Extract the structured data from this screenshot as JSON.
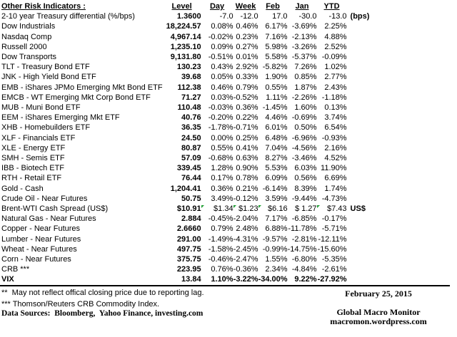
{
  "colors": {
    "flag_green": "#1f9e33",
    "rule_black": "#000000"
  },
  "table": {
    "title": "Other Risk Indicators :",
    "headers": [
      "Level",
      "Day",
      "Week",
      "Feb",
      "Jan",
      "YTD"
    ],
    "rows": [
      {
        "label": "2-10 year Treasury differential (%/bps)",
        "values": [
          "1.3600",
          "-7.0",
          "-12.0",
          "17.0",
          "-30.0",
          "-13.0"
        ],
        "note": "(bps)",
        "note_bold": true
      },
      {
        "label": "Dow Industrials",
        "values": [
          "18,224.57",
          "0.08%",
          "0.46%",
          "6.17%",
          "-3.69%",
          "2.25%"
        ]
      },
      {
        "label": "Nasdaq Comp",
        "values": [
          "4,967.14",
          "-0.02%",
          "0.23%",
          "7.16%",
          "-2.13%",
          "4.88%"
        ]
      },
      {
        "label": "Russell 2000",
        "values": [
          "1,235.10",
          "0.09%",
          "0.27%",
          "5.98%",
          "-3.26%",
          "2.52%"
        ]
      },
      {
        "label": "Dow Transports",
        "values": [
          "9,131.80",
          "-0.51%",
          "0.01%",
          "5.58%",
          "-5.37%",
          "-0.09%"
        ]
      },
      {
        "label": "TLT - Treasury Bond ETF",
        "values": [
          "130.23",
          "0.43%",
          "2.92%",
          "-5.82%",
          "7.26%",
          "1.02%"
        ]
      },
      {
        "label": "JNK - High Yield Bond ETF",
        "values": [
          "39.68",
          "0.05%",
          "0.33%",
          "1.90%",
          "0.85%",
          "2.77%"
        ]
      },
      {
        "label": "EMB - iShares JPMo Emerging Mkt Bond ETF",
        "values": [
          "112.38",
          "0.46%",
          "0.79%",
          "0.55%",
          "1.87%",
          "2.43%"
        ]
      },
      {
        "label": "EMCB - WT Emerging Mkt Corp Bond ETF",
        "values": [
          "71.27",
          "0.03%",
          "-0.52%",
          "1.11%",
          "-2.26%",
          "-1.18%"
        ]
      },
      {
        "label": "MUB - Muni Bond ETF",
        "values": [
          "110.48",
          "-0.03%",
          "0.36%",
          "-1.45%",
          "1.60%",
          "0.13%"
        ]
      },
      {
        "label": "EEM - iShares Emerging Mkt ETF",
        "values": [
          "40.76",
          "-0.20%",
          "0.22%",
          "4.46%",
          "-0.69%",
          "3.74%"
        ]
      },
      {
        "label": "XHB - Homebuilders ETF",
        "values": [
          "36.35",
          "-1.78%",
          "-0.71%",
          "6.01%",
          "0.50%",
          "6.54%"
        ]
      },
      {
        "label": "XLF - Financials ETF",
        "values": [
          "24.50",
          "0.00%",
          "0.25%",
          "6.48%",
          "-6.96%",
          "-0.93%"
        ]
      },
      {
        "label": "XLE - Energy ETF",
        "values": [
          "80.87",
          "0.55%",
          "0.41%",
          "7.04%",
          "-4.56%",
          "2.16%"
        ]
      },
      {
        "label": "SMH - Semis ETF",
        "values": [
          "57.09",
          "-0.68%",
          "0.63%",
          "8.27%",
          "-3.46%",
          "4.52%"
        ]
      },
      {
        "label": "IBB - Biotech ETF",
        "values": [
          "339.45",
          "1.28%",
          "0.90%",
          "5.53%",
          "6.03%",
          "11.90%"
        ]
      },
      {
        "label": "RTH - Retail ETF",
        "values": [
          "76.44",
          "0.17%",
          "0.78%",
          "6.09%",
          "0.56%",
          "6.69%"
        ]
      },
      {
        "label": "Gold - Cash",
        "values": [
          "1,204.41",
          "0.36%",
          "0.21%",
          "-6.14%",
          "8.39%",
          "1.74%"
        ]
      },
      {
        "label": "Crude Oil - Near Futures",
        "values": [
          "50.75",
          "3.49%",
          "-0.12%",
          "3.59%",
          "-9.44%",
          "-4.73%"
        ]
      },
      {
        "label": "Brent-WTI Cash Spread (US$)",
        "values": [
          "$10.91",
          "$1.34",
          "$1.23",
          "$6.16",
          "$ 1.27",
          "$7.43"
        ],
        "note": "US$",
        "note_bold": true,
        "flags": [
          1,
          2,
          3,
          5
        ]
      },
      {
        "label": "Natural Gas - Near Futures",
        "values": [
          "2.884",
          "-0.45%",
          "-2.04%",
          "7.17%",
          "-6.85%",
          "-0.17%"
        ]
      },
      {
        "label": "Copper - Near Futures",
        "values": [
          "2.6660",
          "0.79%",
          "2.48%",
          "6.88%",
          "-11.78%",
          "-5.71%"
        ]
      },
      {
        "label": "Lumber - Near Futures",
        "values": [
          "291.00",
          "-1.49%",
          "-4.31%",
          "-9.57%",
          "-2.81%",
          "-12.11%"
        ]
      },
      {
        "label": "Wheat - Near Futures",
        "values": [
          "497.75",
          "-1.58%",
          "-2.45%",
          "-0.99%",
          "-14.75%",
          "-15.60%"
        ]
      },
      {
        "label": "Corn - Near Futures",
        "values": [
          "375.75",
          "-0.46%",
          "-2.47%",
          "1.55%",
          "-6.80%",
          "-5.35%"
        ]
      },
      {
        "label": "CRB ***",
        "values": [
          "223.95",
          "0.76%",
          "-0.36%",
          "2.34%",
          "-4.84%",
          "-2.61%"
        ]
      },
      {
        "label": "VIX",
        "values": [
          "13.84",
          "1.10%",
          "-3.22%",
          "-34.00%",
          "9.22%",
          "-27.92%"
        ],
        "bold": true
      }
    ]
  },
  "footnotes": {
    "one": "**  May not reflect offical closing price due to reporting lag.",
    "two": "*** Thomson/Reuters CRB Commodity Index.",
    "sources": "Data Sources:  Bloomberg,  Yahoo Finance, investing.com"
  },
  "footer": {
    "date": "February 25, 2015",
    "brand_line1": "Global Macro Monitor",
    "brand_line2": "macromon.wordpress.com"
  }
}
